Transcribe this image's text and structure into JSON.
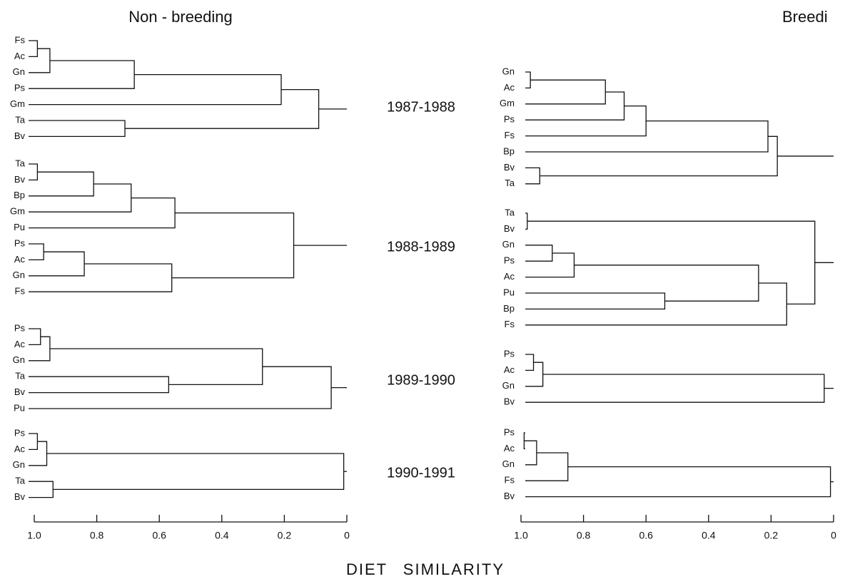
{
  "chart_data": {
    "type": "dendrogram",
    "xlabel": "DIET SIMILARITY",
    "xlim": [
      1,
      0
    ],
    "xticks": [
      {
        "value": 1,
        "label": "1.0"
      },
      0.8,
      0.6,
      0.4,
      0.2,
      0
    ],
    "years": [
      "1987-1988",
      "1988-1989",
      "1989-1990",
      "1990-1991"
    ],
    "panels": [
      {
        "title": "Non - breeding",
        "trees": [
          {
            "leaves": [
              "Fs",
              "Ac",
              "Gn",
              "Ps",
              "Gm",
              "Ta",
              "Bv"
            ],
            "merges": [
              {
                "children": [
                  0,
                  1
                ],
                "similarity": 0.99
              },
              {
                "children": [
                  7,
                  2
                ],
                "similarity": 0.95
              },
              {
                "children": [
                  8,
                  3
                ],
                "similarity": 0.68
              },
              {
                "children": [
                  9,
                  4
                ],
                "similarity": 0.21
              },
              {
                "children": [
                  5,
                  6
                ],
                "similarity": 0.71
              },
              {
                "children": [
                  10,
                  11
                ],
                "similarity": 0.09
              }
            ]
          },
          {
            "leaves": [
              "Ta",
              "Bv",
              "Bp",
              "Gm",
              "Pu",
              "Ps",
              "Ac",
              "Gn",
              "Fs"
            ],
            "merges": [
              {
                "children": [
                  0,
                  1
                ],
                "similarity": 0.99
              },
              {
                "children": [
                  9,
                  2
                ],
                "similarity": 0.81
              },
              {
                "children": [
                  10,
                  3
                ],
                "similarity": 0.69
              },
              {
                "children": [
                  11,
                  4
                ],
                "similarity": 0.55
              },
              {
                "children": [
                  5,
                  6
                ],
                "similarity": 0.97
              },
              {
                "children": [
                  13,
                  7
                ],
                "similarity": 0.84
              },
              {
                "children": [
                  14,
                  8
                ],
                "similarity": 0.56
              },
              {
                "children": [
                  12,
                  15
                ],
                "similarity": 0.17
              }
            ]
          },
          {
            "leaves": [
              "Ps",
              "Ac",
              "Gn",
              "Ta",
              "Bv",
              "Pu"
            ],
            "merges": [
              {
                "children": [
                  0,
                  1
                ],
                "similarity": 0.98
              },
              {
                "children": [
                  6,
                  2
                ],
                "similarity": 0.95
              },
              {
                "children": [
                  3,
                  4
                ],
                "similarity": 0.57
              },
              {
                "children": [
                  7,
                  8
                ],
                "similarity": 0.27
              },
              {
                "children": [
                  9,
                  5
                ],
                "similarity": 0.05
              }
            ]
          },
          {
            "leaves": [
              "Ps",
              "Ac",
              "Gn",
              "Ta",
              "Bv"
            ],
            "merges": [
              {
                "children": [
                  0,
                  1
                ],
                "similarity": 0.99
              },
              {
                "children": [
                  5,
                  2
                ],
                "similarity": 0.96
              },
              {
                "children": [
                  3,
                  4
                ],
                "similarity": 0.94
              },
              {
                "children": [
                  6,
                  7
                ],
                "similarity": 0.01
              }
            ]
          }
        ]
      },
      {
        "title": "Breedi",
        "trees": [
          {
            "leaves": [
              "Gn",
              "Ac",
              "Gm",
              "Ps",
              "Fs",
              "Bp",
              "Bv",
              "Ta"
            ],
            "merges": [
              {
                "children": [
                  0,
                  1
                ],
                "similarity": 0.97
              },
              {
                "children": [
                  8,
                  2
                ],
                "similarity": 0.73
              },
              {
                "children": [
                  9,
                  3
                ],
                "similarity": 0.67
              },
              {
                "children": [
                  10,
                  4
                ],
                "similarity": 0.6
              },
              {
                "children": [
                  11,
                  5
                ],
                "similarity": 0.21
              },
              {
                "children": [
                  6,
                  7
                ],
                "similarity": 0.94
              },
              {
                "children": [
                  12,
                  13
                ],
                "similarity": 0.18
              }
            ]
          },
          {
            "leaves": [
              "Ta",
              "Bv",
              "Gn",
              "Ps",
              "Ac",
              "Pu",
              "Bp",
              "Fs"
            ],
            "merges": [
              {
                "children": [
                  0,
                  1
                ],
                "similarity": 0.98
              },
              {
                "children": [
                  2,
                  3
                ],
                "similarity": 0.9
              },
              {
                "children": [
                  9,
                  4
                ],
                "similarity": 0.83
              },
              {
                "children": [
                  5,
                  6
                ],
                "similarity": 0.54
              },
              {
                "children": [
                  10,
                  11
                ],
                "similarity": 0.24
              },
              {
                "children": [
                  12,
                  7
                ],
                "similarity": 0.15
              },
              {
                "children": [
                  8,
                  13
                ],
                "similarity": 0.06
              }
            ]
          },
          {
            "leaves": [
              "Ps",
              "Ac",
              "Gn",
              "Bv"
            ],
            "merges": [
              {
                "children": [
                  0,
                  1
                ],
                "similarity": 0.96
              },
              {
                "children": [
                  4,
                  2
                ],
                "similarity": 0.93
              },
              {
                "children": [
                  5,
                  3
                ],
                "similarity": 0.03
              }
            ]
          },
          {
            "leaves": [
              "Ps",
              "Ac",
              "Gn",
              "Fs",
              "Bv"
            ],
            "merges": [
              {
                "children": [
                  0,
                  1
                ],
                "similarity": 0.99
              },
              {
                "children": [
                  5,
                  2
                ],
                "similarity": 0.95
              },
              {
                "children": [
                  6,
                  3
                ],
                "similarity": 0.85
              },
              {
                "children": [
                  7,
                  4
                ],
                "similarity": 0.01
              }
            ]
          }
        ]
      }
    ]
  }
}
